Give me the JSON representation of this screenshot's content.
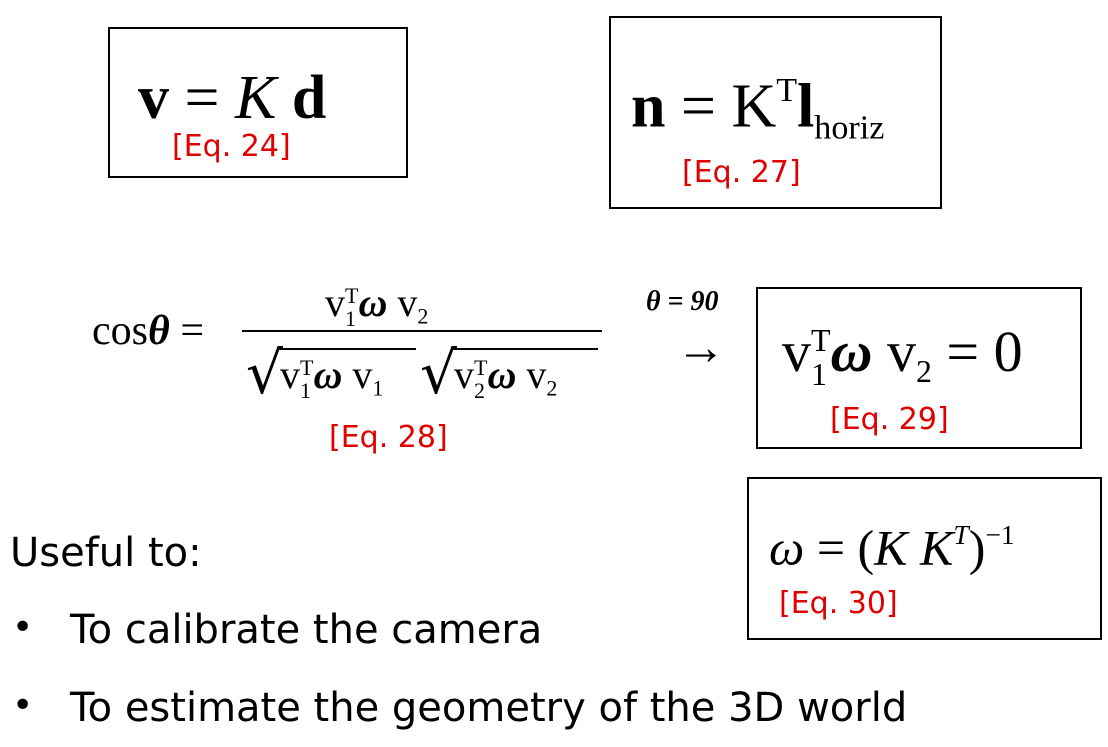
{
  "equations": {
    "eq24": {
      "lhs": "v",
      "equals": "=",
      "k": "K",
      "d": "d",
      "label": "[Eq. 24]"
    },
    "eq27": {
      "lhs": "n",
      "equals": "=",
      "k": "K",
      "transpose": "T",
      "l": "l",
      "sub": "horiz",
      "label": "[Eq. 27]"
    },
    "eq28": {
      "cos": "cos",
      "theta": "θ",
      "equals": "=",
      "v": "v",
      "one": "1",
      "two": "2",
      "transpose": "T",
      "omega": "ω",
      "label": "[Eq. 28]"
    },
    "arrow": {
      "condition": "θ = 90",
      "arrow": "→"
    },
    "eq29": {
      "v": "v",
      "one": "1",
      "two": "2",
      "transpose": "T",
      "omega": "ω",
      "rhs": "= 0",
      "label": "[Eq. 29]"
    },
    "eq30": {
      "omega": "ω",
      "rhs_open": "= (",
      "k1": "K",
      "k2": "K",
      "transpose": "T",
      "close": ")",
      "inverse": "−1",
      "label": "[Eq. 30]"
    }
  },
  "useful": {
    "heading": "Useful to:",
    "bullet": "•",
    "items": [
      "To calibrate the camera",
      "To estimate the geometry of the 3D world"
    ]
  }
}
